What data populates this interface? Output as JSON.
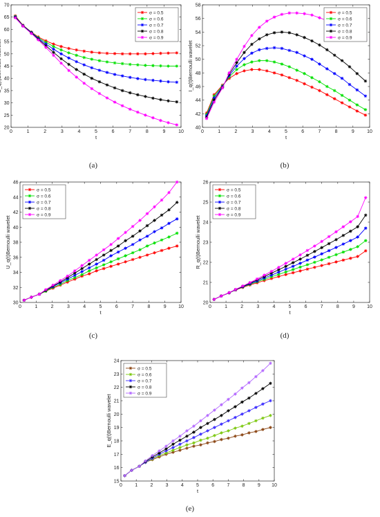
{
  "figure": {
    "panels_text": [
      "(a)",
      "(b)",
      "(c)",
      "(d)",
      "(e)"
    ]
  },
  "chart_data": [
    {
      "type": "line",
      "panel_label": "(a)",
      "xlabel": "t",
      "ylabel": "S_q(t)Bernoulli wavelet",
      "xlim": [
        0,
        10
      ],
      "ylim": [
        20,
        70
      ],
      "xticks": [
        0,
        1,
        2,
        3,
        4,
        5,
        6,
        7,
        8,
        9,
        10
      ],
      "yticks": [
        20,
        25,
        30,
        35,
        40,
        45,
        50,
        55,
        60,
        65,
        70
      ],
      "legend_position": "top-right",
      "x": [
        0.25,
        0.7,
        1.2,
        1.6,
        2.05,
        2.5,
        2.95,
        3.4,
        3.85,
        4.3,
        4.75,
        5.2,
        5.65,
        6.1,
        6.55,
        7.0,
        7.45,
        7.9,
        8.35,
        8.8,
        9.25,
        9.75
      ],
      "series": [
        {
          "name": "σ = 0.5",
          "color": "#ff0000",
          "marker": "star",
          "values": [
            65.5,
            61.7,
            58.9,
            56.9,
            55.3,
            54.0,
            53.0,
            52.2,
            51.6,
            51.1,
            50.7,
            50.4,
            50.2,
            50.1,
            50.0,
            50.0,
            50.0,
            50.0,
            50.1,
            50.2,
            50.3,
            50.4
          ]
        },
        {
          "name": "σ = 0.6",
          "color": "#00e000",
          "marker": "star",
          "values": [
            65.3,
            61.6,
            58.8,
            56.6,
            54.7,
            53.0,
            51.6,
            50.4,
            49.4,
            48.5,
            47.8,
            47.2,
            46.7,
            46.3,
            46.0,
            45.7,
            45.5,
            45.3,
            45.2,
            45.1,
            45.0,
            45.0
          ]
        },
        {
          "name": "σ = 0.7",
          "color": "#0000ff",
          "marker": "star",
          "values": [
            65.1,
            61.5,
            58.7,
            56.3,
            54.0,
            51.9,
            50.0,
            48.3,
            46.8,
            45.5,
            44.3,
            43.3,
            42.4,
            41.6,
            41.0,
            40.4,
            39.9,
            39.5,
            39.2,
            38.9,
            38.6,
            38.4
          ]
        },
        {
          "name": "σ = 0.8",
          "color": "#000000",
          "marker": "star",
          "values": [
            64.9,
            61.4,
            58.5,
            56.0,
            53.3,
            50.6,
            48.0,
            45.7,
            43.6,
            41.7,
            40.0,
            38.6,
            37.3,
            36.1,
            35.0,
            34.1,
            33.3,
            32.6,
            31.9,
            31.3,
            30.8,
            30.4
          ]
        },
        {
          "name": "σ = 0.9",
          "color": "#ff00ff",
          "marker": "star",
          "values": [
            64.7,
            61.3,
            58.3,
            55.7,
            52.6,
            49.4,
            46.2,
            43.2,
            40.5,
            38.0,
            35.8,
            33.8,
            32.0,
            30.3,
            28.8,
            27.4,
            26.2,
            25.0,
            23.9,
            22.8,
            21.9,
            21.0
          ]
        }
      ]
    },
    {
      "type": "line",
      "panel_label": "(b)",
      "xlabel": "t",
      "ylabel": "I_q(t)Bernoulli wavelet",
      "xlim": [
        0,
        10
      ],
      "ylim": [
        40,
        58
      ],
      "xticks": [
        0,
        1,
        2,
        3,
        4,
        5,
        6,
        7,
        8,
        9,
        10
      ],
      "yticks": [
        40,
        42,
        44,
        46,
        48,
        50,
        52,
        54,
        56,
        58
      ],
      "legend_position": "top-right",
      "x": [
        0.25,
        0.7,
        1.2,
        1.6,
        2.05,
        2.5,
        2.95,
        3.4,
        3.85,
        4.3,
        4.75,
        5.2,
        5.65,
        6.1,
        6.55,
        7.0,
        7.45,
        7.9,
        8.35,
        8.8,
        9.25,
        9.75
      ],
      "series": [
        {
          "name": "σ = 0.5",
          "color": "#ff0000",
          "marker": "star",
          "values": [
            42.1,
            44.8,
            46.2,
            47.2,
            47.9,
            48.3,
            48.5,
            48.5,
            48.3,
            48.0,
            47.7,
            47.3,
            46.9,
            46.4,
            45.9,
            45.4,
            44.8,
            44.2,
            43.6,
            43.0,
            42.4,
            41.8
          ]
        },
        {
          "name": "σ = 0.6",
          "color": "#00e000",
          "marker": "star",
          "values": [
            41.9,
            44.6,
            46.1,
            47.4,
            48.5,
            49.2,
            49.6,
            49.8,
            49.8,
            49.6,
            49.3,
            48.9,
            48.4,
            47.9,
            47.3,
            46.7,
            46.0,
            45.4,
            44.7,
            44.0,
            43.3,
            42.6
          ]
        },
        {
          "name": "σ = 0.7",
          "color": "#0000ff",
          "marker": "star",
          "values": [
            41.7,
            44.3,
            46.0,
            47.6,
            49.0,
            50.1,
            50.9,
            51.4,
            51.6,
            51.7,
            51.6,
            51.3,
            51.0,
            50.5,
            50.0,
            49.3,
            48.6,
            47.9,
            47.2,
            46.3,
            45.5,
            44.6
          ]
        },
        {
          "name": "σ = 0.8",
          "color": "#000000",
          "marker": "star",
          "values": [
            41.5,
            44.0,
            45.9,
            47.8,
            49.5,
            51.0,
            52.2,
            53.0,
            53.6,
            53.9,
            54.0,
            53.9,
            53.6,
            53.2,
            52.7,
            52.1,
            51.4,
            50.6,
            49.8,
            48.9,
            47.9,
            46.8
          ]
        },
        {
          "name": "σ = 0.9",
          "color": "#ff00ff",
          "marker": "star",
          "values": [
            41.3,
            43.7,
            45.8,
            48.0,
            50.0,
            51.9,
            53.5,
            54.7,
            55.6,
            56.2,
            56.6,
            56.8,
            56.8,
            56.7,
            56.5,
            56.1,
            55.7,
            55.1,
            54.5,
            53.8,
            53.1,
            52.9
          ]
        }
      ]
    },
    {
      "type": "line",
      "panel_label": "(c)",
      "xlabel": "t",
      "ylabel": "U_q(t)Bernoulli wavelet",
      "xlim": [
        0,
        10
      ],
      "ylim": [
        30,
        46
      ],
      "xticks": [
        0,
        1,
        2,
        3,
        4,
        5,
        6,
        7,
        8,
        9,
        10
      ],
      "yticks": [
        30,
        32,
        34,
        36,
        38,
        40,
        42,
        44,
        46
      ],
      "legend_position": "top-left",
      "x": [
        0.25,
        0.7,
        1.2,
        1.6,
        2.05,
        2.5,
        2.95,
        3.4,
        3.85,
        4.3,
        4.75,
        5.2,
        5.65,
        6.1,
        6.55,
        7.0,
        7.45,
        7.9,
        8.35,
        8.8,
        9.25,
        9.75
      ],
      "series": [
        {
          "name": "σ = 0.5",
          "color": "#ff0000",
          "marker": "star",
          "values": [
            30.3,
            30.7,
            31.1,
            31.5,
            31.9,
            32.3,
            32.7,
            33.1,
            33.5,
            33.8,
            34.2,
            34.5,
            34.8,
            35.1,
            35.4,
            35.7,
            36.0,
            36.3,
            36.6,
            36.9,
            37.2,
            37.5
          ]
        },
        {
          "name": "σ = 0.6",
          "color": "#00e000",
          "marker": "star",
          "values": [
            30.3,
            30.7,
            31.1,
            31.5,
            32.0,
            32.4,
            32.9,
            33.3,
            33.7,
            34.2,
            34.6,
            35.0,
            35.4,
            35.8,
            36.2,
            36.6,
            37.0,
            37.5,
            37.9,
            38.3,
            38.7,
            39.2
          ]
        },
        {
          "name": "σ = 0.7",
          "color": "#0000ff",
          "marker": "star",
          "values": [
            30.3,
            30.7,
            31.1,
            31.6,
            32.1,
            32.6,
            33.1,
            33.6,
            34.1,
            34.6,
            35.1,
            35.6,
            36.2,
            36.7,
            37.2,
            37.7,
            38.3,
            38.8,
            39.4,
            39.9,
            40.5,
            41.1
          ]
        },
        {
          "name": "σ = 0.8",
          "color": "#000000",
          "marker": "star",
          "values": [
            30.3,
            30.7,
            31.1,
            31.6,
            32.2,
            32.7,
            33.3,
            33.9,
            34.5,
            35.1,
            35.7,
            36.3,
            36.9,
            37.5,
            38.2,
            38.8,
            39.5,
            40.2,
            40.9,
            41.6,
            42.3,
            43.3
          ]
        },
        {
          "name": "σ = 0.9",
          "color": "#ff00ff",
          "marker": "star",
          "values": [
            30.3,
            30.7,
            31.1,
            31.7,
            32.3,
            32.9,
            33.5,
            34.2,
            34.9,
            35.6,
            36.3,
            37.0,
            37.7,
            38.5,
            39.3,
            40.1,
            40.9,
            41.8,
            42.7,
            43.6,
            44.6,
            46.0
          ]
        }
      ]
    },
    {
      "type": "line",
      "panel_label": "(d)",
      "xlabel": "t",
      "ylabel": "R_q(t)Bernoulli wavelet",
      "xlim": [
        0,
        10
      ],
      "ylim": [
        20,
        26
      ],
      "xticks": [
        0,
        1,
        2,
        3,
        4,
        5,
        6,
        7,
        8,
        9,
        10
      ],
      "yticks": [
        20,
        21,
        22,
        23,
        24,
        25,
        26
      ],
      "legend_position": "top-left",
      "x": [
        0.25,
        0.7,
        1.2,
        1.6,
        2.05,
        2.5,
        2.95,
        3.4,
        3.85,
        4.3,
        4.75,
        5.2,
        5.65,
        6.1,
        6.55,
        7.0,
        7.45,
        7.9,
        8.35,
        8.8,
        9.25,
        9.75
      ],
      "series": [
        {
          "name": "σ = 0.5",
          "color": "#ff0000",
          "marker": "star",
          "values": [
            20.15,
            20.32,
            20.48,
            20.62,
            20.75,
            20.87,
            20.98,
            21.09,
            21.19,
            21.29,
            21.39,
            21.48,
            21.57,
            21.66,
            21.75,
            21.84,
            21.93,
            22.02,
            22.11,
            22.2,
            22.29,
            22.57
          ]
        },
        {
          "name": "σ = 0.6",
          "color": "#00e000",
          "marker": "star",
          "values": [
            20.15,
            20.32,
            20.48,
            20.63,
            20.77,
            20.9,
            21.03,
            21.15,
            21.28,
            21.4,
            21.52,
            21.64,
            21.76,
            21.88,
            22.0,
            22.12,
            22.25,
            22.38,
            22.51,
            22.64,
            22.78,
            23.08
          ]
        },
        {
          "name": "σ = 0.7",
          "color": "#0000ff",
          "marker": "star",
          "values": [
            20.15,
            20.32,
            20.48,
            20.63,
            20.78,
            20.93,
            21.07,
            21.22,
            21.36,
            21.51,
            21.66,
            21.8,
            21.95,
            22.11,
            22.26,
            22.42,
            22.58,
            22.74,
            22.91,
            23.08,
            23.26,
            23.7
          ]
        },
        {
          "name": "σ = 0.8",
          "color": "#000000",
          "marker": "star",
          "values": [
            20.15,
            20.32,
            20.48,
            20.64,
            20.8,
            20.96,
            21.12,
            21.29,
            21.46,
            21.63,
            21.8,
            21.98,
            22.16,
            22.35,
            22.54,
            22.73,
            22.93,
            23.13,
            23.34,
            23.55,
            23.77,
            24.35
          ]
        },
        {
          "name": "σ = 0.9",
          "color": "#ff00ff",
          "marker": "star",
          "values": [
            20.15,
            20.32,
            20.49,
            20.65,
            20.82,
            20.99,
            21.17,
            21.36,
            21.55,
            21.75,
            21.95,
            22.16,
            22.37,
            22.59,
            22.81,
            23.04,
            23.28,
            23.52,
            23.77,
            24.02,
            24.28,
            25.22
          ]
        }
      ]
    },
    {
      "type": "line",
      "panel_label": "(e)",
      "xlabel": "t",
      "ylabel": "E_q(t)Bernoulli wavelet",
      "xlim": [
        0,
        10
      ],
      "ylim": [
        15,
        24
      ],
      "xticks": [
        0,
        1,
        2,
        3,
        4,
        5,
        6,
        7,
        8,
        9,
        10
      ],
      "yticks": [
        15,
        16,
        17,
        18,
        19,
        20,
        21,
        22,
        23,
        24
      ],
      "legend_position": "top-left",
      "x": [
        0.25,
        0.7,
        1.2,
        1.6,
        2.05,
        2.5,
        2.95,
        3.4,
        3.85,
        4.3,
        4.75,
        5.2,
        5.65,
        6.1,
        6.55,
        7.0,
        7.45,
        7.9,
        8.35,
        8.8,
        9.25,
        9.75
      ],
      "series": [
        {
          "name": "σ = 0.5",
          "color": "#8b4513",
          "marker": "star",
          "values": [
            15.4,
            15.8,
            16.1,
            16.4,
            16.6,
            16.8,
            17.0,
            17.15,
            17.3,
            17.45,
            17.6,
            17.7,
            17.85,
            17.95,
            18.1,
            18.2,
            18.35,
            18.45,
            18.6,
            18.7,
            18.85,
            19.0
          ]
        },
        {
          "name": "σ = 0.6",
          "color": "#7ac70c",
          "marker": "star",
          "values": [
            15.4,
            15.8,
            16.1,
            16.4,
            16.65,
            16.9,
            17.1,
            17.3,
            17.5,
            17.7,
            17.85,
            18.05,
            18.2,
            18.4,
            18.6,
            18.75,
            18.95,
            19.1,
            19.3,
            19.5,
            19.7,
            19.9
          ]
        },
        {
          "name": "σ = 0.7",
          "color": "#3b2cff",
          "marker": "star",
          "values": [
            15.4,
            15.8,
            16.1,
            16.4,
            16.7,
            17.0,
            17.25,
            17.5,
            17.75,
            18.0,
            18.25,
            18.5,
            18.75,
            19.0,
            19.25,
            19.5,
            19.75,
            20.0,
            20.25,
            20.5,
            20.75,
            21.0
          ]
        },
        {
          "name": "σ = 0.8",
          "color": "#000000",
          "marker": "star",
          "values": [
            15.4,
            15.8,
            16.1,
            16.45,
            16.8,
            17.1,
            17.4,
            17.75,
            18.05,
            18.35,
            18.65,
            19.0,
            19.3,
            19.6,
            19.9,
            20.25,
            20.55,
            20.9,
            21.2,
            21.55,
            21.9,
            22.3
          ]
        },
        {
          "name": "σ = 0.9",
          "color": "#b266ff",
          "marker": "star",
          "values": [
            15.4,
            15.8,
            16.1,
            16.5,
            16.9,
            17.25,
            17.6,
            18.0,
            18.35,
            18.75,
            19.1,
            19.5,
            19.9,
            20.3,
            20.7,
            21.1,
            21.5,
            21.95,
            22.35,
            22.8,
            23.25,
            23.8
          ]
        }
      ]
    }
  ]
}
